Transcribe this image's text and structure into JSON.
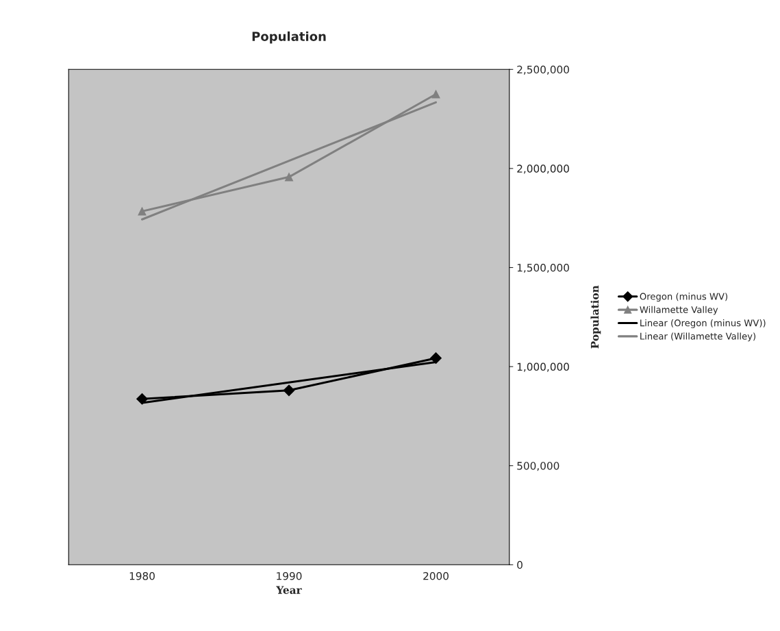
{
  "chart_data": {
    "type": "line",
    "title": "Population",
    "xlabel": "Year",
    "ylabel": "Population",
    "categories": [
      "1980",
      "1990",
      "2000"
    ],
    "series": [
      {
        "name": "Oregon (minus WV)",
        "color": "#000000",
        "values": [
          837000,
          880000,
          1043000
        ],
        "marker": "diamond"
      },
      {
        "name": "Willamette Valley",
        "color": "#808080",
        "values": [
          1784000,
          1957000,
          2375000
        ],
        "marker": "triangle"
      },
      {
        "name": "Linear (Oregon (minus WV))",
        "color": "#000000",
        "values": [
          817000,
          null,
          1023000
        ],
        "marker": "none"
      },
      {
        "name": "Linear (Willamette Valley)",
        "color": "#808080",
        "values": [
          1743000,
          null,
          2334000
        ],
        "marker": "none"
      }
    ],
    "ylim": [
      0,
      2500000
    ],
    "yticks": [
      {
        "value": 0,
        "label": "0"
      },
      {
        "value": 500000,
        "label": "500,000"
      },
      {
        "value": 1000000,
        "label": "1,000,000"
      },
      {
        "value": 1500000,
        "label": "1,500,000"
      },
      {
        "value": 2000000,
        "label": "2,000,000"
      },
      {
        "value": 2500000,
        "label": "2,500,000"
      }
    ],
    "grid": false,
    "legend": "right"
  }
}
